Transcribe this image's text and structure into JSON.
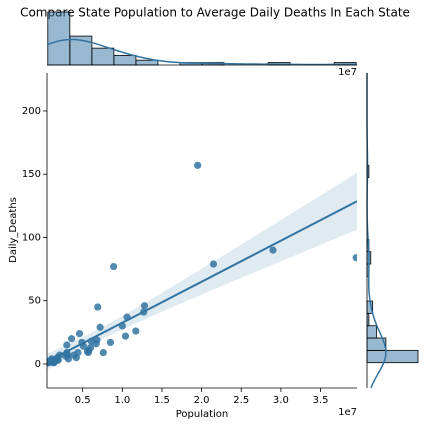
{
  "chart_data": {
    "type": "scatter",
    "title": "Compare State Population to Average Daily Deaths In Each State",
    "x_label": "Population",
    "y_label": "Daily_Deaths",
    "x_offset_label": "1e7",
    "color": "#3274a1",
    "x": [
      39500000,
      29000000,
      21500000,
      19500000,
      12800000,
      12700000,
      11700000,
      10600000,
      10400000,
      10000000,
      8900000,
      8500000,
      7600000,
      7200000,
      6900000,
      6800000,
      6700000,
      6100000,
      6000000,
      5800000,
      5700000,
      5600000,
      5100000,
      4900000,
      4600000,
      4400000,
      4200000,
      3900000,
      3600000,
      3200000,
      3100000,
      3000000,
      3000000,
      3000000,
      2900000,
      2100000,
      1900000,
      1800000,
      1800000,
      1400000,
      1400000,
      1300000,
      1100000,
      1100000,
      1000000,
      900000,
      800000,
      700000,
      700000,
      600000,
      600000
    ],
    "values": [
      84,
      90,
      79,
      157,
      46,
      41,
      26,
      37,
      22,
      30,
      77,
      17,
      9,
      29,
      45,
      19,
      16,
      18,
      13,
      11,
      9,
      10,
      14,
      17,
      24,
      9,
      5,
      7,
      20,
      4,
      7,
      8,
      9,
      15,
      6,
      7,
      3,
      5,
      3,
      1,
      2,
      1,
      2,
      4,
      3,
      2,
      2,
      1,
      2,
      1,
      1
    ],
    "xlim": [
      500000,
      39600000
    ],
    "xticks": [
      {
        "value": 5000000,
        "label": "0.5"
      },
      {
        "value": 10000000,
        "label": "1.0"
      },
      {
        "value": 15000000,
        "label": "1.5"
      },
      {
        "value": 20000000,
        "label": "2.0"
      },
      {
        "value": 25000000,
        "label": "2.5"
      },
      {
        "value": 30000000,
        "label": "3.0"
      },
      {
        "value": 35000000,
        "label": "3.5"
      }
    ],
    "ylim": [
      -19,
      230
    ],
    "yticks": [
      0,
      50,
      100,
      150,
      200
    ]
  }
}
